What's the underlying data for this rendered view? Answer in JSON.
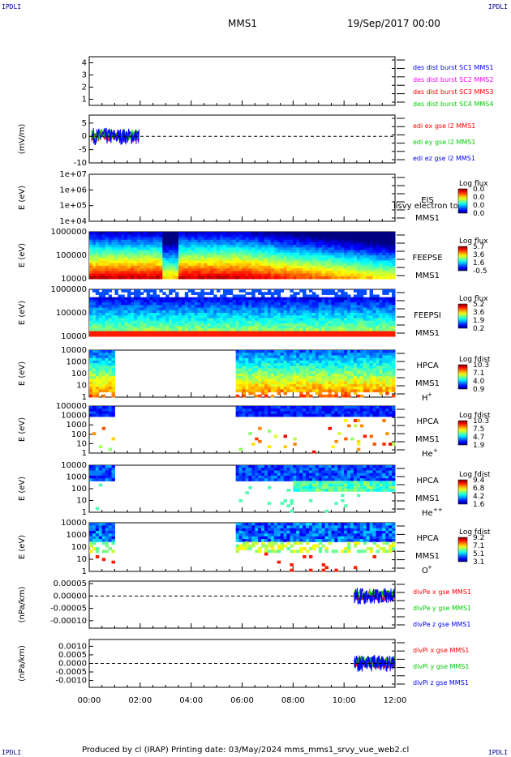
{
  "header": {
    "corner_left": "IPDLI",
    "corner_right": "IPDLI",
    "mission": "MMS1",
    "date": "19/Sep/2017 00:00"
  },
  "footer": {
    "text": "Produced by cl (IRAP)   Printing date: 03/May/2024   mms_mms1_srvy_vue_web2.cl",
    "corner_left": "IPDLI",
    "corner_right": "IPDLI"
  },
  "chart_data": {
    "type": "multi-panel time series",
    "x": {
      "ticks": [
        "00:00",
        "02:00",
        "04:00",
        "06:00",
        "08:00",
        "10:00",
        "12:00"
      ],
      "range_hours": [
        0,
        12
      ]
    },
    "panels": [
      {
        "id": "burst",
        "kind": "flags",
        "ylim": [
          0.5,
          4.5
        ],
        "yticks": [
          "1",
          "2",
          "3",
          "4"
        ],
        "legend": [
          {
            "text": "des dist burst SC1 MMS1",
            "color": "#0000ff"
          },
          {
            "text": "des dist burst SC2 MMS2",
            "color": "#ff00ff"
          },
          {
            "text": "des dist burst SC3 MMS3",
            "color": "#ff0000"
          },
          {
            "text": "des dist burst SC4 MMS4",
            "color": "#00cc00"
          }
        ]
      },
      {
        "id": "edi",
        "kind": "line",
        "ylabel": "(mV/m)",
        "ylim": [
          -10,
          8
        ],
        "yticks": [
          "5",
          "0",
          "-5",
          "-10"
        ],
        "ytick_values": [
          5,
          0,
          -5,
          -10
        ],
        "data_range_hours": [
          0.1,
          1.95
        ],
        "legend": [
          {
            "text": "edi ex gse l2 MMS1",
            "color": "#ff0000"
          },
          {
            "text": "edi ey gse l2 MMS1",
            "color": "#00cc00"
          },
          {
            "text": "edi ez gse l2 MMS1",
            "color": "#0000ff"
          }
        ]
      },
      {
        "id": "eis",
        "kind": "spectrogram",
        "ylabel": "E (eV)",
        "yticks": [
          "1e+07",
          "1e+06",
          "1e+05",
          "1e+04"
        ],
        "labels": [
          "EIS",
          "MMS1"
        ],
        "overlay_text": "lisvy electron to",
        "colorbar": {
          "title": "Log flux",
          "ticks": [
            "0.0",
            "0.0",
            "0.0",
            "0.0"
          ]
        },
        "data_segments": []
      },
      {
        "id": "feepse",
        "kind": "spectrogram",
        "ylabel": "E (eV)",
        "yticks": [
          "1000000",
          "100000",
          "10000"
        ],
        "labels": [
          "FEEPSE",
          "MMS1"
        ],
        "colorbar": {
          "title": "Log flux",
          "ticks": [
            "5.7",
            "3.6",
            "1.6",
            "-0.5"
          ]
        },
        "data_segments": [
          [
            0,
            12
          ]
        ]
      },
      {
        "id": "feepsi",
        "kind": "spectrogram",
        "ylabel": "E (eV)",
        "yticks": [
          "1000000",
          "100000",
          "10000"
        ],
        "labels": [
          "FEEPSI",
          "MMS1"
        ],
        "colorbar": {
          "title": "Log flux",
          "ticks": [
            "5.2",
            "3.6",
            "1.9",
            "0.2"
          ]
        },
        "data_segments": [
          [
            0,
            12
          ]
        ]
      },
      {
        "id": "hpca_h",
        "kind": "spectrogram",
        "ylabel": "E (eV)",
        "yticks": [
          "10000",
          "1000",
          "100",
          "10",
          "1"
        ],
        "labels": [
          "HPCA",
          "MMS1"
        ],
        "species": {
          "base": "H",
          "sup": "+"
        },
        "colorbar": {
          "title": "Log fdist",
          "ticks": [
            "10.3",
            "7.1",
            "4.0",
            "0.9"
          ]
        },
        "data_segments": [
          [
            0,
            0.95
          ],
          [
            5.7,
            12
          ]
        ]
      },
      {
        "id": "hpca_he",
        "kind": "spectrogram",
        "ylabel": "E (eV)",
        "yticks": [
          "100000",
          "10000",
          "1000",
          "100",
          "10",
          "1"
        ],
        "labels": [
          "HPCA",
          "MMS1"
        ],
        "species": {
          "base": "He",
          "sup": "+"
        },
        "colorbar": {
          "title": "Log fdist",
          "ticks": [
            "10.3",
            "7.5",
            "4.7",
            "1.9"
          ]
        },
        "data_segments": [
          [
            0,
            0.95
          ],
          [
            5.7,
            12
          ]
        ]
      },
      {
        "id": "hpca_hepp",
        "kind": "spectrogram",
        "ylabel": "E (eV)",
        "yticks": [
          "10000",
          "1000",
          "100",
          "10",
          "1"
        ],
        "labels": [
          "HPCA",
          "MMS1"
        ],
        "species": {
          "base": "He",
          "sup": "++"
        },
        "colorbar": {
          "title": "Log fdist",
          "ticks": [
            "9.4",
            "6.8",
            "4.2",
            "1.6"
          ]
        },
        "data_segments": [
          [
            0,
            0.95
          ],
          [
            5.7,
            12
          ]
        ]
      },
      {
        "id": "hpca_o",
        "kind": "spectrogram",
        "ylabel": "E (eV)",
        "yticks": [
          "10000",
          "1000",
          "100",
          "10",
          "1"
        ],
        "labels": [
          "HPCA",
          "MMS1"
        ],
        "species": {
          "base": "O",
          "sup": "+"
        },
        "colorbar": {
          "title": "Log fdist",
          "ticks": [
            "9.2",
            "7.1",
            "5.1",
            "3.1"
          ]
        },
        "data_segments": [
          [
            0,
            0.95
          ],
          [
            5.7,
            12
          ]
        ]
      },
      {
        "id": "divpe",
        "kind": "line",
        "ylabel": "(nPa/km)",
        "ylim": [
          -0.00013,
          6e-05
        ],
        "yticks": [
          "0.00005",
          "0.00000",
          "-0.00005",
          "-0.00010"
        ],
        "ytick_values": [
          5e-05,
          0,
          -5e-05,
          -0.0001
        ],
        "data_range_hours": [
          10.4,
          12
        ],
        "legend": [
          {
            "text": "divPe x gse MMS1",
            "color": "#ff0000"
          },
          {
            "text": "divPe y gse MMS1",
            "color": "#00cc00"
          },
          {
            "text": "divPe z gse MMS1",
            "color": "#0000ff"
          }
        ]
      },
      {
        "id": "divpi",
        "kind": "line",
        "ylabel": "(nPa/km)",
        "ylim": [
          -0.0014,
          0.0014
        ],
        "yticks": [
          "0.0010",
          "0.0005",
          "0.0000",
          "-0.0005",
          "-0.0010"
        ],
        "ytick_values": [
          0.001,
          0.0005,
          0,
          -0.0005,
          -0.001
        ],
        "data_range_hours": [
          10.4,
          12
        ],
        "legend": [
          {
            "text": "divPi x gse MMS1",
            "color": "#ff0000"
          },
          {
            "text": "divPi y gse MMS1",
            "color": "#00cc00"
          },
          {
            "text": "divPi z gse MMS1",
            "color": "#0000ff"
          }
        ]
      }
    ]
  }
}
